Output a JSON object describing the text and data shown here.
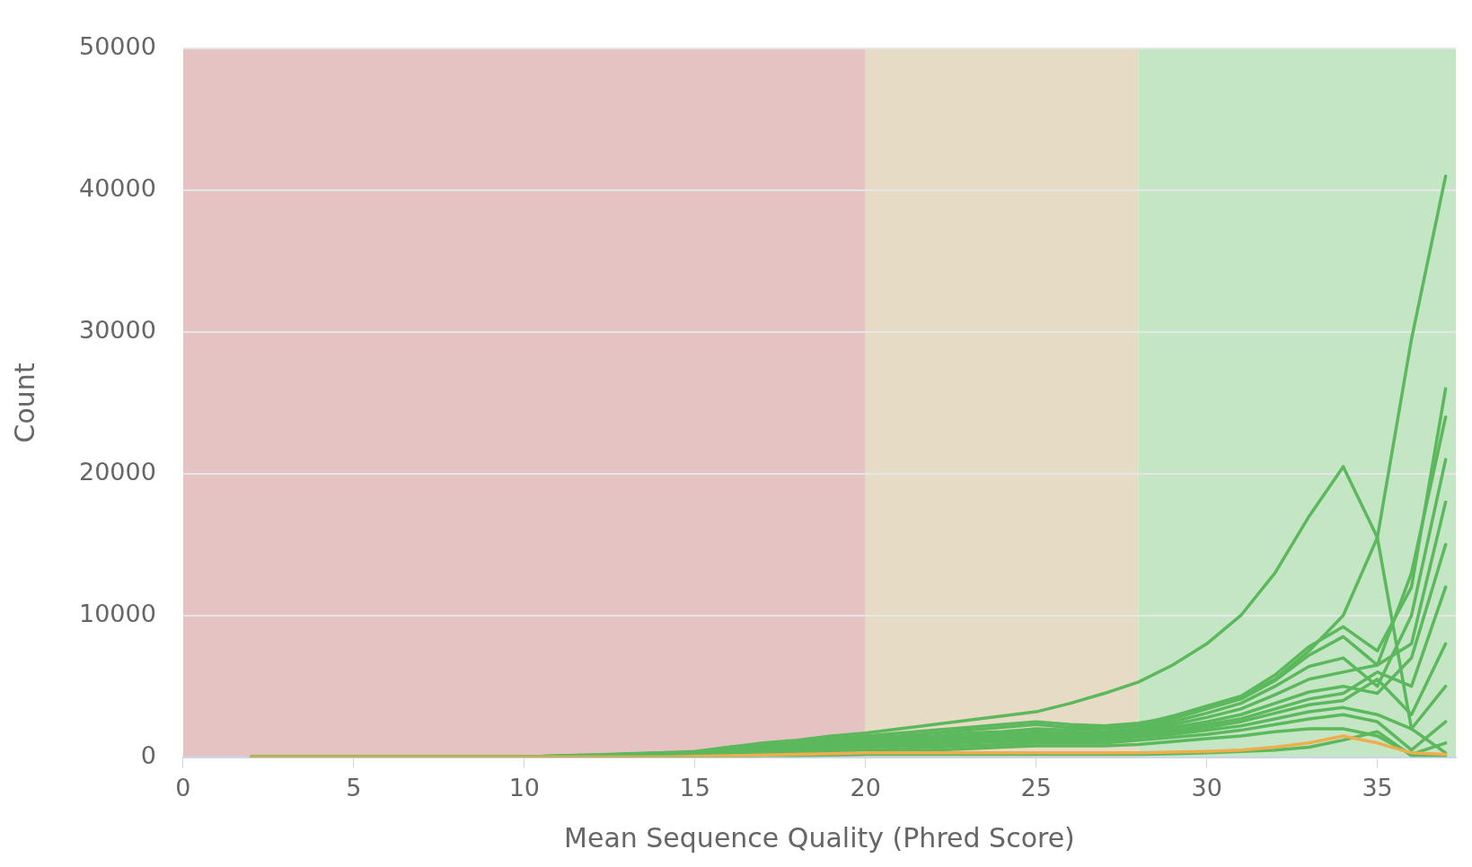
{
  "chart_data": {
    "type": "line",
    "xlabel": "Mean Sequence Quality (Phred Score)",
    "ylabel": "Count",
    "x": [
      2,
      3,
      4,
      5,
      6,
      7,
      8,
      9,
      10,
      11,
      12,
      13,
      14,
      15,
      16,
      17,
      18,
      19,
      20,
      21,
      22,
      23,
      24,
      25,
      26,
      27,
      28,
      29,
      30,
      31,
      32,
      33,
      34,
      35,
      36,
      37
    ],
    "xlim": [
      0,
      37.3
    ],
    "xticks": [
      0,
      5,
      10,
      15,
      20,
      25,
      30,
      35
    ],
    "ylim": [
      0,
      50000
    ],
    "yticks": [
      0,
      10000,
      20000,
      30000,
      40000,
      50000
    ],
    "grid": "y",
    "legend": false,
    "marker": "none",
    "line_style": "solid",
    "bands": [
      {
        "axis": "x",
        "from": 0,
        "to": 20,
        "color": "#e6c3c3"
      },
      {
        "axis": "x",
        "from": 20,
        "to": 28,
        "color": "#e6dbc4"
      },
      {
        "axis": "x",
        "from": 28,
        "to": 37.3,
        "color": "#c4e6c4"
      }
    ],
    "series": [
      {
        "color": "#f0ad4e",
        "values": [
          0,
          0,
          0,
          0,
          0,
          0,
          0,
          0,
          0,
          0,
          0,
          0,
          0,
          50,
          100,
          150,
          200,
          250,
          300,
          300,
          300,
          300,
          300,
          300,
          300,
          300,
          300,
          350,
          400,
          500,
          700,
          1000,
          1500,
          1000,
          300,
          200
        ]
      },
      {
        "color": "#5cb85c",
        "values": [
          0,
          0,
          0,
          0,
          0,
          0,
          0,
          0,
          0,
          100,
          150,
          200,
          300,
          400,
          700,
          900,
          1100,
          1300,
          1500,
          1700,
          1900,
          2100,
          2300,
          2500,
          2300,
          2200,
          2400,
          2800,
          3500,
          4200,
          5500,
          7500,
          10000,
          15500,
          29500,
          41000
        ]
      },
      {
        "color": "#5cb85c",
        "values": [
          0,
          0,
          0,
          0,
          0,
          0,
          0,
          0,
          0,
          100,
          150,
          250,
          300,
          350,
          700,
          1000,
          1200,
          1500,
          1700,
          2000,
          2300,
          2600,
          2900,
          3200,
          3800,
          4500,
          5300,
          6500,
          8000,
          10000,
          13000,
          17000,
          20500,
          15500,
          2000,
          300
        ]
      },
      {
        "color": "#5cb85c",
        "values": [
          0,
          0,
          0,
          0,
          0,
          0,
          0,
          0,
          0,
          50,
          100,
          150,
          200,
          300,
          500,
          800,
          1000,
          1200,
          1400,
          1500,
          1700,
          1900,
          2100,
          2300,
          2100,
          2100,
          2300,
          2900,
          3600,
          4300,
          5800,
          7800,
          9200,
          7500,
          12000,
          26000
        ]
      },
      {
        "color": "#5cb85c",
        "values": [
          0,
          0,
          0,
          0,
          0,
          0,
          0,
          0,
          0,
          50,
          100,
          150,
          200,
          300,
          500,
          700,
          900,
          1100,
          1300,
          1400,
          1500,
          1700,
          1800,
          2000,
          1900,
          2000,
          2200,
          2700,
          3400,
          4100,
          5400,
          7200,
          8500,
          6500,
          13000,
          24000
        ]
      },
      {
        "color": "#5cb85c",
        "values": [
          0,
          0,
          0,
          0,
          0,
          0,
          0,
          0,
          0,
          50,
          100,
          100,
          200,
          250,
          400,
          600,
          800,
          1000,
          1200,
          1300,
          1400,
          1500,
          1600,
          1800,
          1700,
          1800,
          2000,
          2500,
          3100,
          3800,
          5000,
          6400,
          7000,
          5000,
          10000,
          21000
        ]
      },
      {
        "color": "#5cb85c",
        "values": [
          0,
          0,
          0,
          0,
          0,
          0,
          0,
          0,
          0,
          50,
          50,
          100,
          150,
          200,
          400,
          600,
          800,
          900,
          1100,
          1200,
          1300,
          1400,
          1500,
          1700,
          1600,
          1700,
          1900,
          2300,
          2800,
          3400,
          4400,
          5500,
          6000,
          6500,
          8000,
          18000
        ]
      },
      {
        "color": "#5cb85c",
        "values": [
          0,
          0,
          0,
          0,
          0,
          0,
          0,
          0,
          0,
          0,
          50,
          100,
          150,
          200,
          300,
          500,
          700,
          800,
          1000,
          1100,
          1200,
          1300,
          1400,
          1500,
          1500,
          1600,
          1800,
          2100,
          2500,
          3000,
          3800,
          4600,
          5000,
          4500,
          7000,
          15000
        ]
      },
      {
        "color": "#5cb85c",
        "values": [
          0,
          0,
          0,
          0,
          0,
          0,
          0,
          0,
          0,
          0,
          50,
          100,
          100,
          150,
          300,
          400,
          600,
          700,
          900,
          1000,
          1100,
          1200,
          1300,
          1400,
          1400,
          1500,
          1600,
          1900,
          2300,
          2700,
          3400,
          4100,
          4500,
          6000,
          5000,
          12000
        ]
      },
      {
        "color": "#5cb85c",
        "values": [
          0,
          0,
          0,
          0,
          0,
          0,
          0,
          0,
          0,
          0,
          50,
          50,
          100,
          150,
          200,
          400,
          500,
          600,
          800,
          900,
          1000,
          1100,
          1200,
          1300,
          1300,
          1400,
          1500,
          1800,
          2100,
          2500,
          3100,
          3700,
          4000,
          5500,
          3000,
          8000
        ]
      },
      {
        "color": "#5cb85c",
        "values": [
          0,
          0,
          0,
          0,
          0,
          0,
          0,
          0,
          0,
          0,
          0,
          50,
          100,
          100,
          200,
          300,
          400,
          500,
          700,
          800,
          900,
          1000,
          1100,
          1200,
          1200,
          1200,
          1400,
          1600,
          1900,
          2200,
          2700,
          3200,
          3500,
          3000,
          2000,
          5000
        ]
      },
      {
        "color": "#5cb85c",
        "values": [
          0,
          0,
          0,
          0,
          0,
          0,
          0,
          0,
          0,
          0,
          0,
          50,
          50,
          100,
          150,
          200,
          300,
          400,
          500,
          600,
          700,
          800,
          900,
          1000,
          1000,
          1000,
          1200,
          1400,
          1600,
          1900,
          2300,
          2700,
          3000,
          2500,
          500,
          2500
        ]
      },
      {
        "color": "#5cb85c",
        "values": [
          0,
          0,
          0,
          0,
          0,
          0,
          0,
          0,
          0,
          0,
          0,
          0,
          50,
          50,
          100,
          150,
          200,
          300,
          400,
          400,
          500,
          600,
          700,
          800,
          800,
          800,
          900,
          1100,
          1300,
          1500,
          1800,
          2000,
          2000,
          1500,
          200,
          1000
        ]
      },
      {
        "color": "#5cb85c",
        "values": [
          0,
          0,
          0,
          0,
          0,
          0,
          0,
          0,
          0,
          0,
          0,
          0,
          0,
          50,
          50,
          100,
          100,
          150,
          200,
          200,
          200,
          200,
          200,
          200,
          200,
          200,
          200,
          250,
          300,
          400,
          500,
          700,
          1200,
          1800,
          100,
          100
        ]
      }
    ]
  }
}
